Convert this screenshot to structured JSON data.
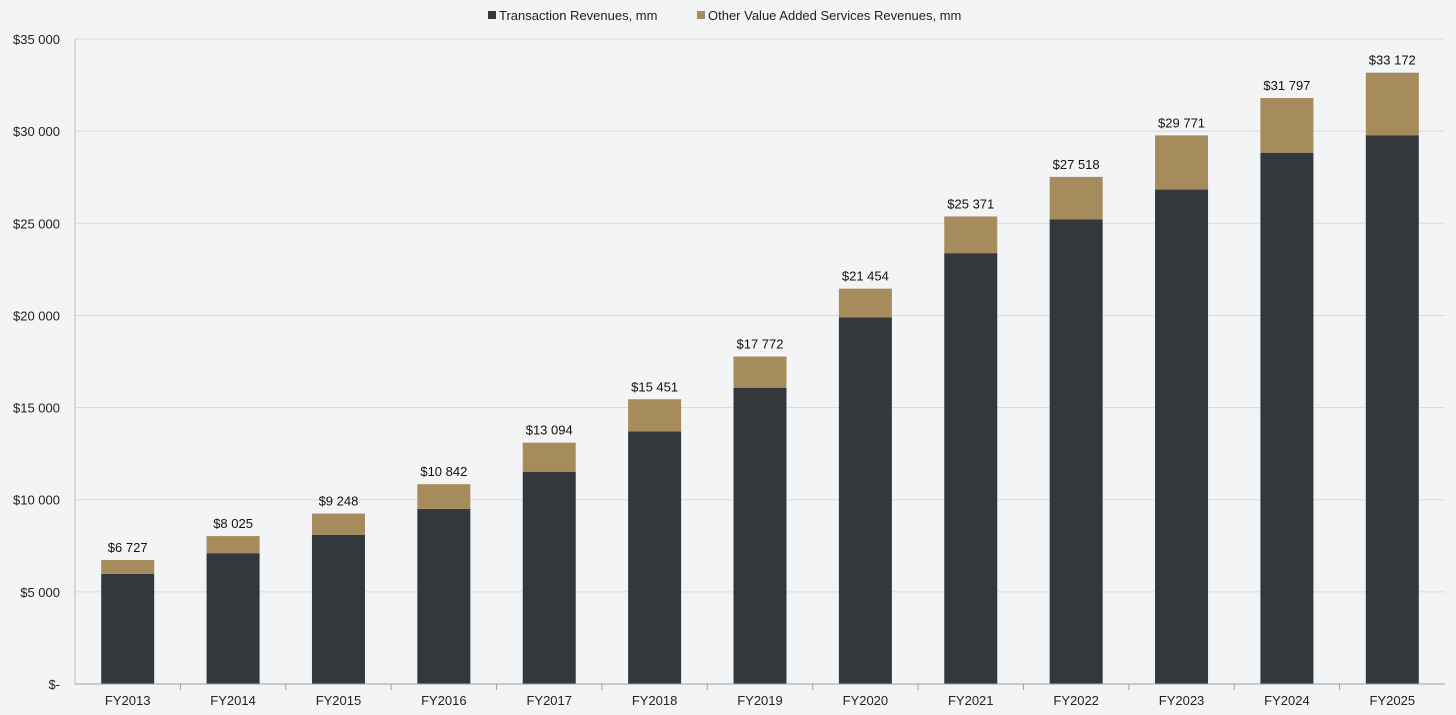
{
  "chart_data": {
    "type": "bar",
    "stacked": true,
    "title": "",
    "xlabel": "",
    "ylabel": "",
    "categories": [
      "FY2013",
      "FY2014",
      "FY2015",
      "FY2016",
      "FY2017",
      "FY2018",
      "FY2019",
      "FY2020",
      "FY2021",
      "FY2022",
      "FY2023",
      "FY2024",
      "FY2025"
    ],
    "series": [
      {
        "name": "Transaction Revenues, mm",
        "color": "#32383b",
        "values": [
          5980,
          7100,
          8100,
          9500,
          11520,
          13700,
          16080,
          19900,
          23380,
          25220,
          26830,
          28830,
          29780
        ]
      },
      {
        "name": "Other Value Added Services Revenues, mm",
        "color": "#a68b5c",
        "values": [
          747,
          925,
          1148,
          1342,
          1574,
          1751,
          1692,
          1554,
          1991,
          2298,
          2941,
          2967,
          3392
        ]
      }
    ],
    "totals": [
      6727,
      8025,
      9248,
      10842,
      13094,
      15451,
      17772,
      21454,
      25371,
      27518,
      29771,
      31797,
      33172
    ],
    "total_labels": [
      "$6 727",
      "$8 025",
      "$9 248",
      "$10 842",
      "$13 094",
      "$15 451",
      "$17 772",
      "$21 454",
      "$25 371",
      "$27 518",
      "$29 771",
      "$31 797",
      "$33 172"
    ],
    "ylim": [
      0,
      35000
    ],
    "yticks": [
      0,
      5000,
      10000,
      15000,
      20000,
      25000,
      30000,
      35000
    ],
    "ytick_labels": [
      "$-",
      "$5 000",
      "$10 000",
      "$15 000",
      "$20 000",
      "$25 000",
      "$30 000",
      "$35 000"
    ],
    "grid": true,
    "legend_position": "top-center"
  }
}
